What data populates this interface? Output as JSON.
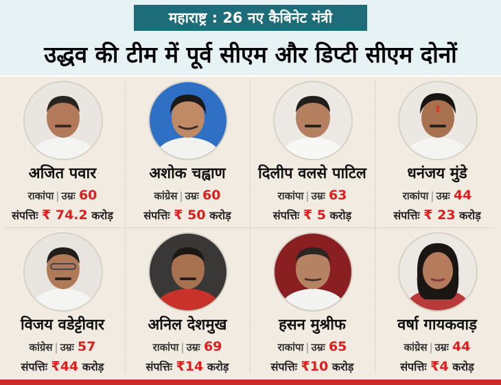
{
  "header": {
    "kicker": "महाराष्ट्र : 26 नए कैबिनेट मंत्री",
    "headline": "उद्धव की टीम में पूर्व सीएम और डिप्टी सीएम दोनों"
  },
  "labels": {
    "age_label": "उम्रः",
    "assets_label": "संपत्तिः",
    "currency": "₹",
    "crore": "करोड़"
  },
  "ministers": [
    {
      "name": "अजित पवार",
      "party": "राकांपा",
      "age": "60",
      "assets": "74.2"
    },
    {
      "name": "अशोक चह्वाण",
      "party": "कांग्रेस",
      "age": "60",
      "assets": "50"
    },
    {
      "name": "दिलीप वलसे पाटिल",
      "party": "राकांपा",
      "age": "63",
      "assets": "5"
    },
    {
      "name": "धनंजय मुंडे",
      "party": "राकांपा",
      "age": "44",
      "assets": "23"
    },
    {
      "name": "विजय वडेट्टीवार",
      "party": "कांग्रेस",
      "age": "57",
      "assets": "44"
    },
    {
      "name": "अनिल देशमुख",
      "party": "राकांपा",
      "age": "69",
      "assets": "14"
    },
    {
      "name": "हसन मुश्रीफ",
      "party": "राकांपा",
      "age": "65",
      "assets": "10"
    },
    {
      "name": "वर्षा गायकवाड़",
      "party": "कांग्रेस",
      "age": "44",
      "assets": "4"
    }
  ],
  "colors": {
    "kicker_bg": "#1d6c79",
    "header_bg": "#e7f2f5",
    "grid_bg": "#f1ebe2",
    "accent_red": "#e21b1b",
    "bottom_bar": "#c92a2a"
  }
}
